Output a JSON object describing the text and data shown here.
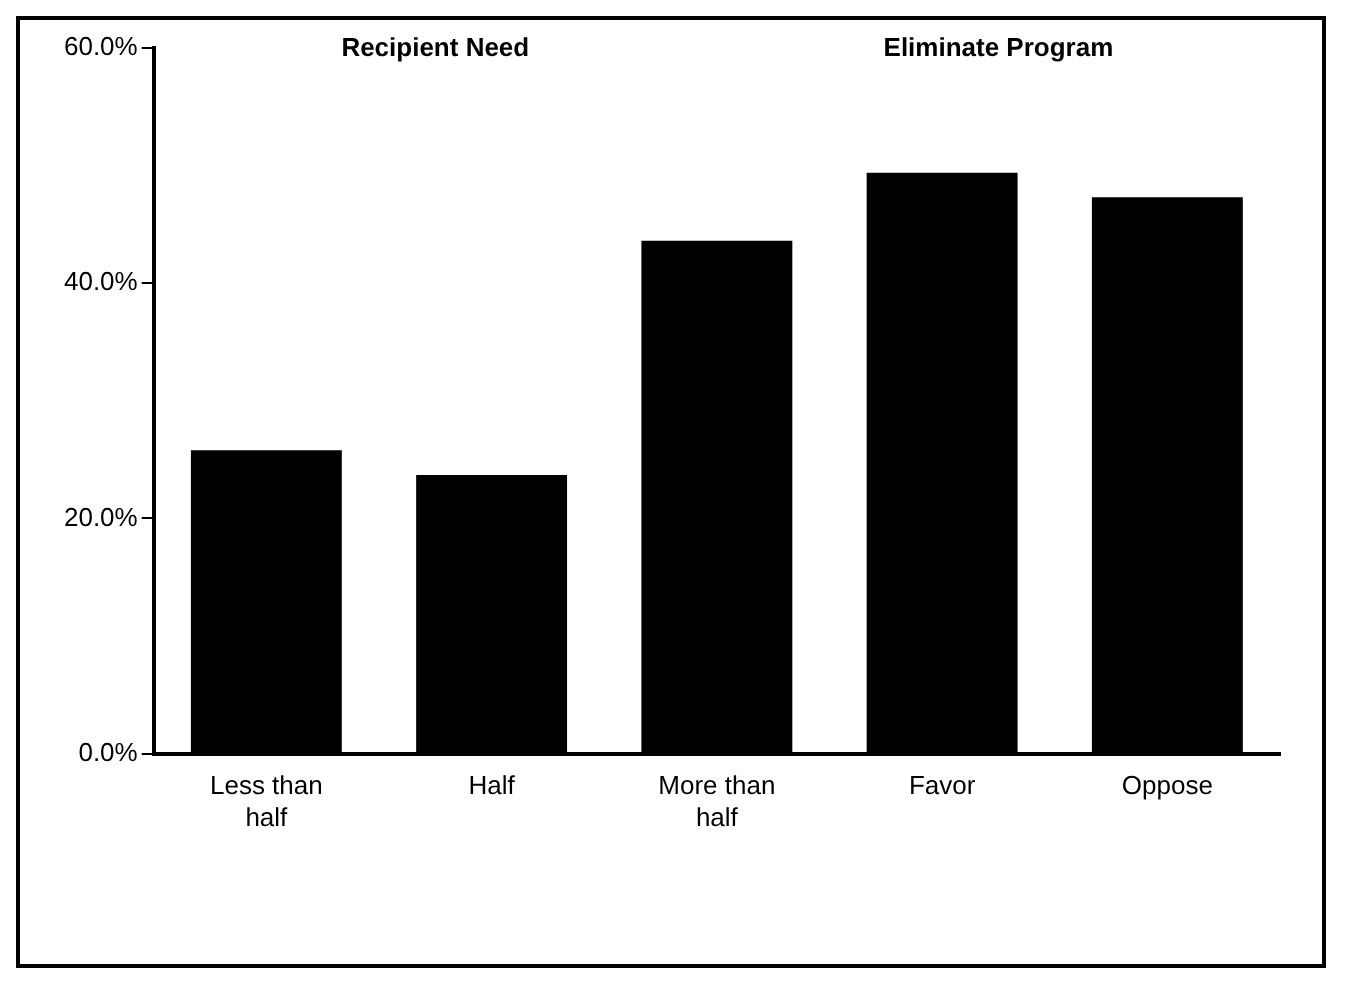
{
  "chart_data": {
    "type": "bar",
    "categories": [
      "Less than half",
      "Half",
      "More than half",
      "Favor",
      "Oppose"
    ],
    "values": [
      25.8,
      23.7,
      43.6,
      49.4,
      47.3
    ],
    "color": "#000000",
    "ylim": [
      0,
      60
    ],
    "yticks": [
      {
        "value": 0,
        "label": "0.0%"
      },
      {
        "value": 20,
        "label": "20.0%"
      },
      {
        "value": 40,
        "label": "40.0%"
      },
      {
        "value": 60,
        "label": "60.0%"
      }
    ],
    "annotations": [
      "Recipient Need",
      "Eliminate Program"
    ],
    "grid": false,
    "legend": false
  }
}
